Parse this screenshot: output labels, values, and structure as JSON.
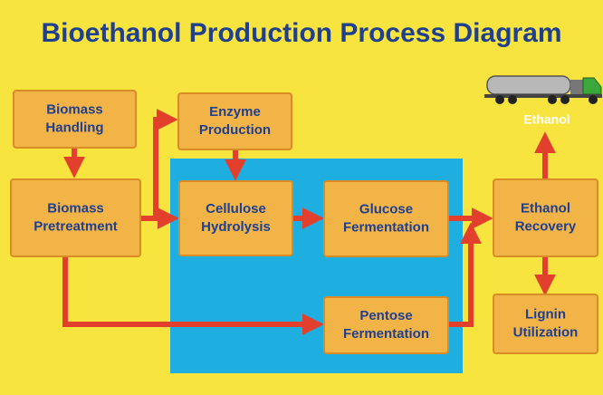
{
  "title": "Bioethanol Production Process Diagram",
  "nodes": [
    {
      "lines": [
        "Biomass",
        "Handling"
      ]
    },
    {
      "lines": [
        "Enzyme",
        "Production"
      ]
    },
    {
      "lines": [
        "Biomass",
        "Pretreatment"
      ]
    },
    {
      "lines": [
        "Cellulose",
        "Hydrolysis"
      ]
    },
    {
      "lines": [
        "Glucose",
        "Fermentation"
      ]
    },
    {
      "lines": [
        "Pentose",
        "Fermentation"
      ]
    },
    {
      "lines": [
        "Ethanol",
        "Recovery"
      ]
    },
    {
      "lines": [
        "Lignin",
        "Utilization"
      ]
    }
  ],
  "output_label": "Ethanol"
}
